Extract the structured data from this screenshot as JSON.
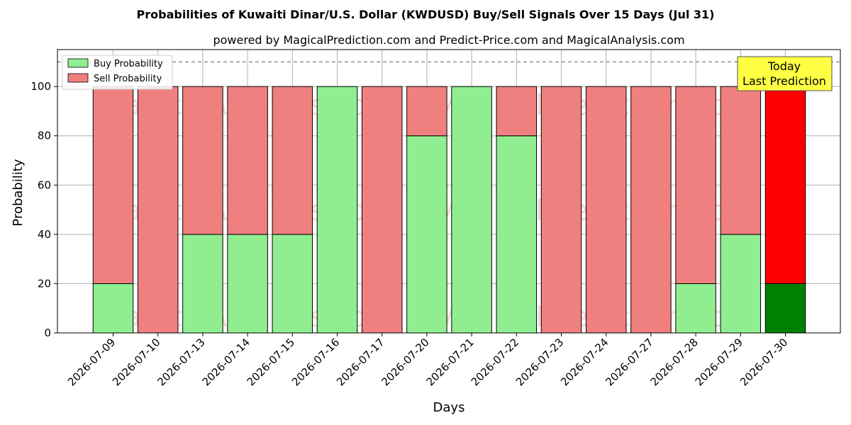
{
  "chart_data": {
    "type": "bar",
    "stacked": true,
    "title": "Probabilities of Kuwaiti Dinar/U.S. Dollar (KWDUSD) Buy/Sell Signals Over 15 Days (Jul 31)",
    "subtitle": "powered by MagicalPrediction.com and Predict-Price.com and MagicalAnalysis.com",
    "xlabel": "Days",
    "ylabel": "Probability",
    "ylim": [
      0,
      115
    ],
    "yticks": [
      0,
      20,
      40,
      60,
      80,
      100
    ],
    "grid": true,
    "legend_position": "top-left",
    "reference_line": 110,
    "categories": [
      "2026-07-09",
      "2026-07-10",
      "2026-07-13",
      "2026-07-14",
      "2026-07-15",
      "2026-07-16",
      "2026-07-17",
      "2026-07-20",
      "2026-07-21",
      "2026-07-22",
      "2026-07-23",
      "2026-07-24",
      "2026-07-27",
      "2026-07-28",
      "2026-07-29",
      "2026-07-30"
    ],
    "series": [
      {
        "name": "Buy Probability",
        "color": "#90ee90",
        "values": [
          20,
          0,
          40,
          40,
          40,
          100,
          0,
          80,
          100,
          80,
          0,
          0,
          0,
          20,
          40,
          20
        ]
      },
      {
        "name": "Sell Probability",
        "color": "#f08080",
        "values": [
          80,
          100,
          60,
          60,
          60,
          0,
          100,
          20,
          0,
          20,
          100,
          100,
          100,
          80,
          60,
          80
        ]
      }
    ],
    "highlight": {
      "index": 15,
      "buy_color": "#008000",
      "sell_color": "#ff0000"
    },
    "annotation": {
      "line1": "Today",
      "line2": "Last Prediction",
      "background": "#ffff44"
    },
    "watermarks": [
      "MagicalAnalysis.com",
      "MagicalPrediction.com"
    ]
  }
}
